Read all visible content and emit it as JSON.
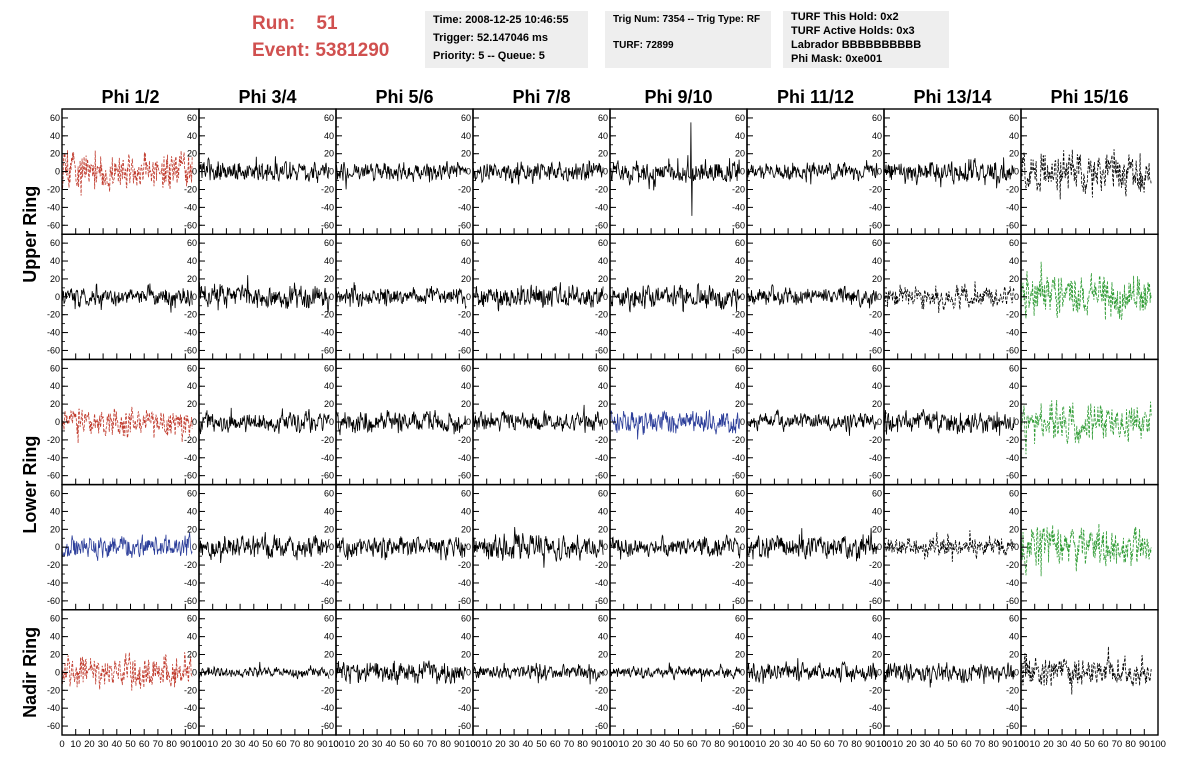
{
  "header": {
    "run_label": "Run:",
    "run_value": "51",
    "event_label": "Event:",
    "event_value": "5381290",
    "box1": [
      "Time: 2008-12-25 10:46:55",
      "Trigger: 52.147046 ms",
      "Priority: 5 -- Queue: 5"
    ],
    "box2": [
      "Trig Num: 7354 -- Trig Type: RF",
      "TURF: 72899"
    ],
    "box3": [
      "TURF This Hold: 0x2",
      "TURF Active Holds: 0x3",
      "Labrador BBBBBBBBBB",
      "Phi Mask: 0xe001"
    ]
  },
  "colors": {
    "red": "#c0392b",
    "blue": "#2c3e9a",
    "green": "#2e9b33",
    "black": "#000000"
  },
  "chart_data": {
    "type": "line",
    "columns": [
      "Phi 1/2",
      "Phi 3/4",
      "Phi 5/6",
      "Phi 7/8",
      "Phi 9/10",
      "Phi 11/12",
      "Phi 13/14",
      "Phi 15/16"
    ],
    "ring_labels": [
      "Upper Ring",
      "Lower Ring",
      "Nadir Ring"
    ],
    "ylim": [
      -70,
      70
    ],
    "y_ticks": [
      -60,
      -40,
      -20,
      0,
      20,
      40,
      60
    ],
    "xlim": [
      0,
      100
    ],
    "x_ticks": [
      0,
      10,
      20,
      30,
      40,
      50,
      60,
      70,
      80,
      90,
      100
    ],
    "x_range_traces": [
      0,
      95
    ],
    "samples_per_trace": 260,
    "panels": [
      [
        {
          "color": "red",
          "style": "dashed",
          "amp": 26,
          "seed": 11,
          "spike_amp": 0
        },
        {
          "color": "black",
          "style": "solid",
          "amp": 15,
          "seed": 12,
          "spike_amp": 0
        },
        {
          "color": "black",
          "style": "solid",
          "amp": 14,
          "seed": 13,
          "spike_amp": 0
        },
        {
          "color": "black",
          "style": "solid",
          "amp": 14,
          "seed": 14,
          "spike_amp": 0
        },
        {
          "color": "black",
          "style": "solid",
          "amp": 16,
          "seed": 15,
          "spike_amp": 55
        },
        {
          "color": "black",
          "style": "solid",
          "amp": 12,
          "seed": 16,
          "spike_amp": 0
        },
        {
          "color": "black",
          "style": "solid",
          "amp": 17,
          "seed": 17,
          "spike_amp": 0
        },
        {
          "color": "black",
          "style": "dashed",
          "amp": 28,
          "seed": 18,
          "spike_amp": 0
        }
      ],
      [
        {
          "color": "black",
          "style": "solid",
          "amp": 14,
          "seed": 21,
          "spike_amp": 0
        },
        {
          "color": "black",
          "style": "solid",
          "amp": 17,
          "seed": 22,
          "spike_amp": 0
        },
        {
          "color": "black",
          "style": "solid",
          "amp": 14,
          "seed": 23,
          "spike_amp": 0
        },
        {
          "color": "black",
          "style": "solid",
          "amp": 16,
          "seed": 24,
          "spike_amp": 0
        },
        {
          "color": "black",
          "style": "solid",
          "amp": 17,
          "seed": 25,
          "spike_amp": 0
        },
        {
          "color": "black",
          "style": "solid",
          "amp": 13,
          "seed": 26,
          "spike_amp": 0
        },
        {
          "color": "black",
          "style": "dashed",
          "amp": 16,
          "seed": 27,
          "spike_amp": 0
        },
        {
          "color": "green",
          "style": "dashed",
          "amp": 32,
          "seed": 28,
          "spike_amp": 0
        }
      ],
      [
        {
          "color": "red",
          "style": "dashed",
          "amp": 22,
          "seed": 31,
          "spike_amp": 0
        },
        {
          "color": "black",
          "style": "solid",
          "amp": 14,
          "seed": 32,
          "spike_amp": 0
        },
        {
          "color": "black",
          "style": "solid",
          "amp": 16,
          "seed": 33,
          "spike_amp": 0
        },
        {
          "color": "black",
          "style": "solid",
          "amp": 14,
          "seed": 34,
          "spike_amp": 0
        },
        {
          "color": "blue",
          "style": "solid",
          "amp": 17,
          "seed": 35,
          "spike_amp": 0
        },
        {
          "color": "black",
          "style": "solid",
          "amp": 12,
          "seed": 36,
          "spike_amp": 0
        },
        {
          "color": "black",
          "style": "solid",
          "amp": 16,
          "seed": 37,
          "spike_amp": 0
        },
        {
          "color": "green",
          "style": "dashed",
          "amp": 26,
          "seed": 38,
          "spike_amp": 0
        }
      ],
      [
        {
          "color": "blue",
          "style": "solid",
          "amp": 16,
          "seed": 41,
          "spike_amp": 0
        },
        {
          "color": "black",
          "style": "solid",
          "amp": 16,
          "seed": 42,
          "spike_amp": 0
        },
        {
          "color": "black",
          "style": "solid",
          "amp": 15,
          "seed": 43,
          "spike_amp": 0
        },
        {
          "color": "black",
          "style": "solid",
          "amp": 18,
          "seed": 44,
          "spike_amp": 0
        },
        {
          "color": "black",
          "style": "solid",
          "amp": 13,
          "seed": 45,
          "spike_amp": 0
        },
        {
          "color": "black",
          "style": "solid",
          "amp": 17,
          "seed": 46,
          "spike_amp": 0
        },
        {
          "color": "black",
          "style": "dashed",
          "amp": 15,
          "seed": 47,
          "spike_amp": 0
        },
        {
          "color": "green",
          "style": "dashed",
          "amp": 30,
          "seed": 48,
          "spike_amp": 0
        }
      ],
      [
        {
          "color": "red",
          "style": "dashed",
          "amp": 25,
          "seed": 51,
          "spike_amp": 0
        },
        {
          "color": "black",
          "style": "solid",
          "amp": 8,
          "seed": 52,
          "spike_amp": 0
        },
        {
          "color": "black",
          "style": "solid",
          "amp": 15,
          "seed": 53,
          "spike_amp": 0
        },
        {
          "color": "black",
          "style": "solid",
          "amp": 11,
          "seed": 54,
          "spike_amp": 0
        },
        {
          "color": "black",
          "style": "solid",
          "amp": 9,
          "seed": 55,
          "spike_amp": 0
        },
        {
          "color": "black",
          "style": "solid",
          "amp": 13,
          "seed": 56,
          "spike_amp": 0
        },
        {
          "color": "black",
          "style": "solid",
          "amp": 14,
          "seed": 57,
          "spike_amp": 0
        },
        {
          "color": "black",
          "style": "dashed",
          "amp": 20,
          "seed": 58,
          "spike_amp": 0
        }
      ]
    ]
  }
}
